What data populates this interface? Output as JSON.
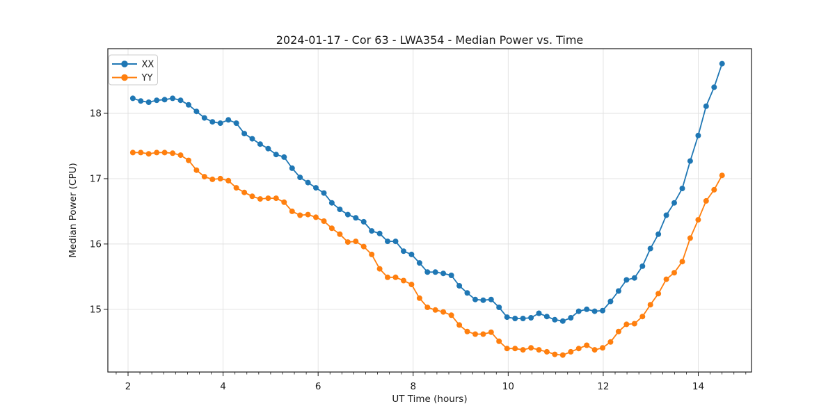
{
  "figure": {
    "background": "#ffffff",
    "text_color": "#1a1a1a",
    "spine_color": "#1a1a1a",
    "grid_color": "#e0e0e0"
  },
  "chart_data": {
    "type": "line",
    "title": "2024-01-17 - Cor 63 - LWA354 - Median Power vs. Time",
    "xlabel": "UT Time (hours)",
    "ylabel": "Median Power (CPU)",
    "xlim": [
      1.575,
      15.12
    ],
    "ylim": [
      14.04,
      18.99
    ],
    "grid": true,
    "legend_position": "upper-left",
    "x_major_ticks": [
      2,
      4,
      6,
      8,
      10,
      12,
      14
    ],
    "x_tick_labels": [
      "2",
      "4",
      "6",
      "8",
      "10",
      "12",
      "14"
    ],
    "x_minor_tick_step": 0.25,
    "x_minor_tick_start": 1.75,
    "x_minor_tick_end": 15.0,
    "y_major_ticks": [
      15,
      16,
      17,
      18
    ],
    "y_tick_labels": [
      "15",
      "16",
      "17",
      "18"
    ],
    "marker": "circle",
    "x": [
      2.1,
      2.268,
      2.435,
      2.603,
      2.77,
      2.938,
      3.105,
      3.273,
      3.441,
      3.608,
      3.776,
      3.943,
      4.111,
      4.278,
      4.446,
      4.614,
      4.781,
      4.949,
      5.116,
      5.284,
      5.452,
      5.619,
      5.787,
      5.954,
      6.122,
      6.289,
      6.457,
      6.625,
      6.792,
      6.96,
      7.127,
      7.295,
      7.462,
      7.63,
      7.798,
      7.965,
      8.133,
      8.3,
      8.468,
      8.635,
      8.803,
      8.971,
      9.138,
      9.306,
      9.473,
      9.641,
      9.808,
      9.976,
      10.144,
      10.311,
      10.479,
      10.646,
      10.814,
      10.981,
      11.149,
      11.317,
      11.484,
      11.652,
      11.819,
      11.987,
      12.154,
      12.322,
      12.49,
      12.657,
      12.825,
      12.992,
      13.16,
      13.327,
      13.495,
      13.663,
      13.83,
      13.998,
      14.165,
      14.333,
      14.5
    ],
    "series": [
      {
        "name": "XX",
        "color": "#1f77b4",
        "values": [
          18.23,
          18.19,
          18.17,
          18.2,
          18.21,
          18.23,
          18.2,
          18.13,
          18.03,
          17.93,
          17.87,
          17.85,
          17.9,
          17.85,
          17.69,
          17.61,
          17.53,
          17.46,
          17.37,
          17.33,
          17.16,
          17.02,
          16.94,
          16.86,
          16.78,
          16.63,
          16.53,
          16.45,
          16.4,
          16.34,
          16.2,
          16.16,
          16.04,
          16.04,
          15.89,
          15.84,
          15.71,
          15.57,
          15.57,
          15.55,
          15.52,
          15.36,
          15.25,
          15.15,
          15.14,
          15.15,
          15.03,
          14.88,
          14.86,
          14.86,
          14.87,
          14.94,
          14.89,
          14.84,
          14.82,
          14.87,
          14.97,
          15.0,
          14.97,
          14.98,
          15.12,
          15.28,
          15.45,
          15.48,
          15.66,
          15.93,
          16.15,
          16.44,
          16.63,
          16.85,
          17.27,
          17.66,
          18.11,
          18.4,
          18.76
        ]
      },
      {
        "name": "YY",
        "color": "#ff7f0e",
        "values": [
          17.4,
          17.4,
          17.38,
          17.4,
          17.4,
          17.39,
          17.36,
          17.28,
          17.13,
          17.03,
          16.99,
          17.0,
          16.97,
          16.86,
          16.79,
          16.73,
          16.69,
          16.7,
          16.7,
          16.64,
          16.5,
          16.44,
          16.45,
          16.41,
          16.35,
          16.24,
          16.15,
          16.03,
          16.04,
          15.96,
          15.84,
          15.62,
          15.49,
          15.49,
          15.44,
          15.38,
          15.17,
          15.03,
          14.99,
          14.96,
          14.91,
          14.76,
          14.66,
          14.62,
          14.62,
          14.65,
          14.51,
          14.4,
          14.4,
          14.38,
          14.41,
          14.38,
          14.35,
          14.31,
          14.3,
          14.35,
          14.4,
          14.45,
          14.38,
          14.41,
          14.5,
          14.66,
          14.77,
          14.78,
          14.89,
          15.07,
          15.24,
          15.46,
          15.56,
          15.73,
          16.09,
          16.37,
          16.66,
          16.83,
          17.05
        ]
      }
    ]
  }
}
